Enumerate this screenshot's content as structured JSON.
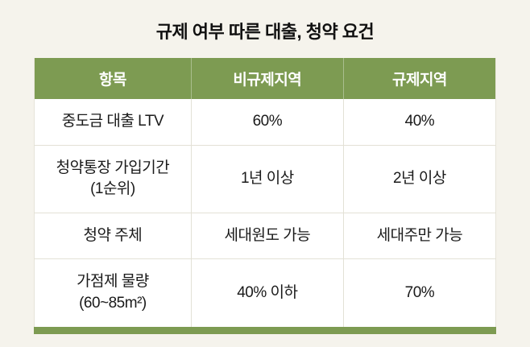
{
  "title": "규제 여부 따른 대출, 청약 요건",
  "colors": {
    "background": "#f5f3ec",
    "header_green": "#7d9b52",
    "body_background": "#ffffff",
    "border": "#e3e1d6",
    "header_text": "#ffffff",
    "text": "#1a1a1a"
  },
  "table": {
    "headers": [
      "항목",
      "비규제지역",
      "규제지역"
    ],
    "rows": [
      [
        "중도금 대출 LTV",
        "60%",
        "40%"
      ],
      [
        "청약통장 가입기간\n(1순위)",
        "1년 이상",
        "2년 이상"
      ],
      [
        "청약 주체",
        "세대원도 가능",
        "세대주만 가능"
      ],
      [
        "가점제 물량\n(60~85m²)",
        "40% 이하",
        "70%"
      ]
    ]
  },
  "chart_data": {
    "type": "table",
    "title": "규제 여부 따른 대출, 청약 요건",
    "columns": [
      "항목",
      "비규제지역",
      "규제지역"
    ],
    "rows": [
      [
        "중도금 대출 LTV",
        "60%",
        "40%"
      ],
      [
        "청약통장 가입기간 (1순위)",
        "1년 이상",
        "2년 이상"
      ],
      [
        "청약 주체",
        "세대원도 가능",
        "세대주만 가능"
      ],
      [
        "가점제 물량 (60~85m²)",
        "40% 이하",
        "70%"
      ]
    ],
    "legend_position": "none",
    "grid": true
  }
}
